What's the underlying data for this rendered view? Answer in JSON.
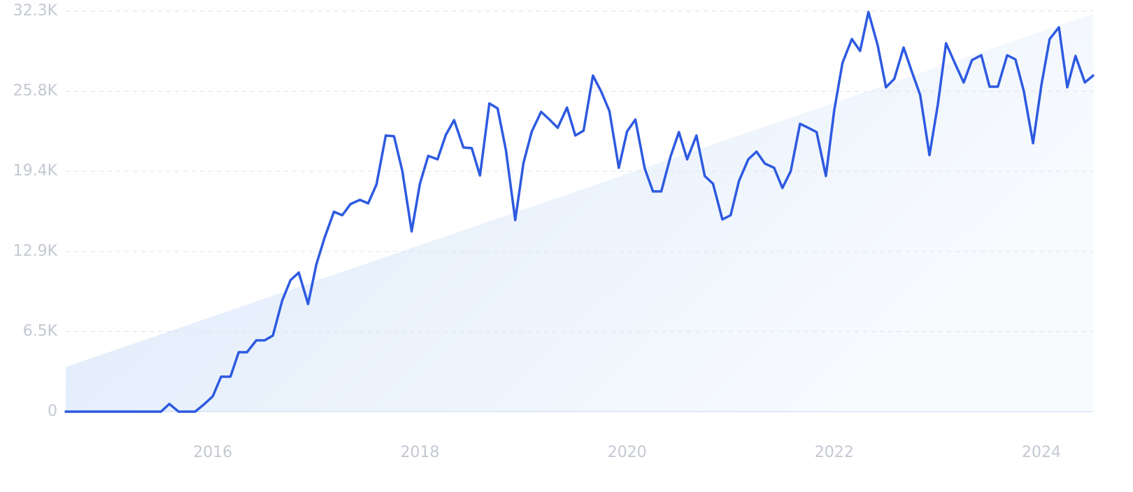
{
  "chart_data": {
    "type": "line",
    "color": "#2d5ae0",
    "grid": true,
    "x": [
      2014.58,
      2014.67,
      2014.75,
      2014.83,
      2014.92,
      2015.0,
      2015.08,
      2015.17,
      2015.25,
      2015.33,
      2015.42,
      2015.5,
      2015.58,
      2015.67,
      2015.75,
      2015.83,
      2015.92,
      2016.0,
      2016.08,
      2016.17,
      2016.25,
      2016.33,
      2016.42,
      2016.5,
      2016.58,
      2016.67,
      2016.75,
      2016.83,
      2016.92,
      2017.0,
      2017.08,
      2017.17,
      2017.25,
      2017.33,
      2017.42,
      2017.5,
      2017.58,
      2017.67,
      2017.75,
      2017.83,
      2017.92,
      2018.0,
      2018.08,
      2018.17,
      2018.25,
      2018.33,
      2018.42,
      2018.5,
      2018.58,
      2018.67,
      2018.75,
      2018.83,
      2018.92,
      2019.0,
      2019.08,
      2019.17,
      2019.25,
      2019.33,
      2019.42,
      2019.5,
      2019.58,
      2019.67,
      2019.75,
      2019.83,
      2019.92,
      2020.0,
      2020.08,
      2020.17,
      2020.25,
      2020.33,
      2020.42,
      2020.5,
      2020.58,
      2020.67,
      2020.75,
      2020.83,
      2020.92,
      2021.0,
      2021.08,
      2021.17,
      2021.25,
      2021.33,
      2021.42,
      2021.5,
      2021.58,
      2021.67,
      2021.75,
      2021.83,
      2021.92,
      2022.0,
      2022.08,
      2022.17,
      2022.25,
      2022.33,
      2022.42,
      2022.5,
      2022.58,
      2022.67,
      2022.75,
      2022.83,
      2022.92,
      2023.0,
      2023.08,
      2023.17,
      2023.25,
      2023.33,
      2023.42,
      2023.5,
      2023.58,
      2023.67,
      2023.75,
      2023.83,
      2023.92,
      2024.0,
      2024.08,
      2024.17,
      2024.25,
      2024.33,
      2024.42,
      2024.5
    ],
    "values": [
      0,
      0,
      0,
      0,
      0,
      0,
      0,
      0,
      0,
      0,
      0,
      0,
      620,
      0,
      0,
      0,
      620,
      1240,
      2820,
      2820,
      4790,
      4790,
      5750,
      5750,
      6140,
      8960,
      10600,
      11220,
      8680,
      11890,
      14040,
      16120,
      15840,
      16740,
      17080,
      16800,
      18320,
      22270,
      22210,
      19390,
      14540,
      18380,
      20630,
      20350,
      22320,
      23510,
      21310,
      21250,
      19050,
      24860,
      24460,
      21080,
      15450,
      20070,
      22600,
      24180,
      23560,
      22890,
      24520,
      22270,
      22660,
      27110,
      25820,
      24240,
      19670,
      22600,
      23560,
      19620,
      17760,
      17760,
      20580,
      22550,
      20350,
      22270,
      19000,
      18380,
      15500,
      15840,
      18600,
      20350,
      20970,
      20010,
      19670,
      18040,
      19390,
      23220,
      22890,
      22550,
      19000,
      24300,
      28130,
      30050,
      29090,
      32240,
      29540,
      26160,
      26840,
      29370,
      27400,
      25540,
      20690,
      24750,
      29710,
      28020,
      26550,
      28350,
      28750,
      26210,
      26210,
      28750,
      28410,
      25870,
      21650,
      26330,
      30050,
      31000,
      26160,
      28690,
      26550,
      27110
    ],
    "trend": [
      3600,
      32100
    ],
    "xlim": [
      2014.58,
      2024.5
    ],
    "xticks": [
      2016,
      2018,
      2020,
      2022,
      2024
    ],
    "ylim": [
      0,
      32300
    ],
    "yticks": [
      0,
      {
        "value": 6460,
        "label": "6.5K"
      },
      {
        "value": 12920,
        "label": "12.9K"
      },
      {
        "value": 19380,
        "label": "19.4K"
      },
      {
        "value": 25840,
        "label": "25.8K"
      },
      {
        "value": 32300,
        "label": "32.3K"
      }
    ]
  }
}
